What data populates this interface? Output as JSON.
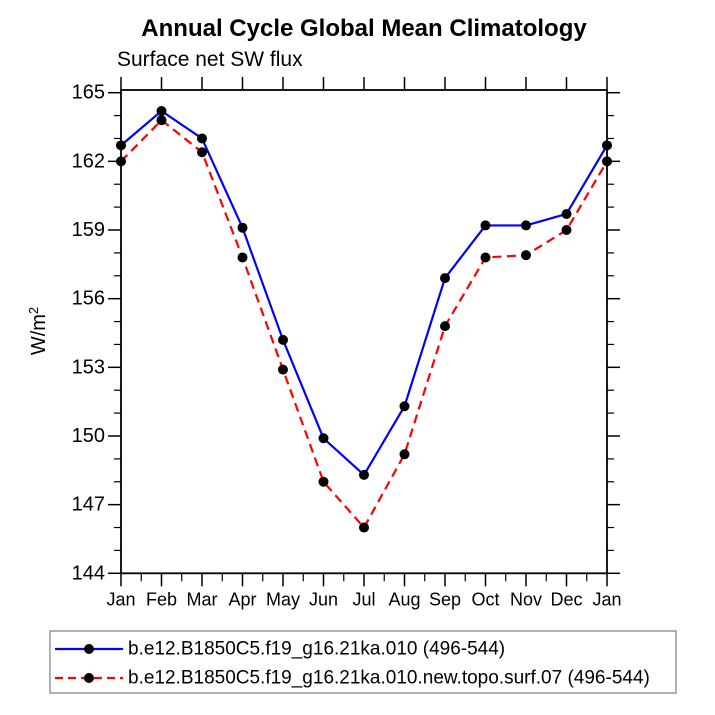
{
  "chart_data": {
    "type": "line",
    "title": "Annual Cycle Global Mean Climatology",
    "subtitle": "Surface net SW flux",
    "ylabel_base": "W/m",
    "ylabel_exponent": "2",
    "xlabel": "",
    "categories": [
      "Jan",
      "Feb",
      "Mar",
      "Apr",
      "May",
      "Jun",
      "Jul",
      "Aug",
      "Sep",
      "Oct",
      "Nov",
      "Dec",
      "Jan"
    ],
    "series": [
      {
        "name": "b.e12.B1850C5.f19_g16.21ka.010 (496-544)",
        "color": "#0000ff",
        "line_style": "solid",
        "marker": "filled-circle",
        "marker_color": "#000000",
        "values": [
          162.7,
          164.2,
          163.0,
          159.1,
          154.2,
          149.9,
          148.3,
          151.3,
          156.9,
          159.2,
          159.2,
          159.7,
          162.7
        ]
      },
      {
        "name": "b.e12.B1850C5.f19_g16.21ka.010.new.topo.surf.07 (496-544)",
        "color": "#ff0000",
        "line_style": "dashed",
        "marker": "filled-circle",
        "marker_color": "#000000",
        "values": [
          162.0,
          163.8,
          162.4,
          157.8,
          152.9,
          148.0,
          146.0,
          149.2,
          154.8,
          157.8,
          157.9,
          159.0,
          162.0
        ]
      }
    ],
    "ylim": [
      144,
      165
    ],
    "yticks": [
      144,
      147,
      150,
      153,
      156,
      159,
      162,
      165
    ],
    "y_minor_step": 1,
    "x_minor_step": 0.5,
    "grid": false,
    "legend_position": "bottom"
  },
  "colors": {
    "background": "#ffffff",
    "axis": "#000000",
    "text": "#000000",
    "series1": "#0000ff",
    "series2": "#ff0000",
    "marker": "#000000",
    "legend_border": "#999999"
  }
}
